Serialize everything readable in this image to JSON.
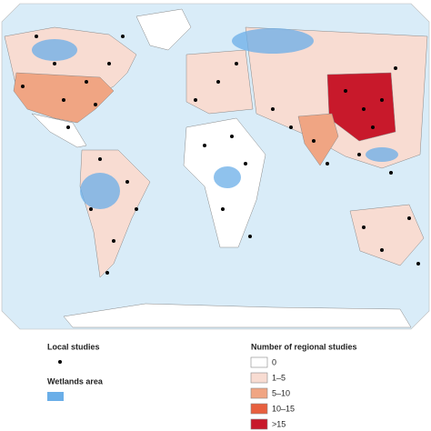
{
  "legend": {
    "local_studies": {
      "title": "Local studies",
      "color": "#000000"
    },
    "wetlands": {
      "title": "Wetlands area",
      "color": "#6aaee8"
    },
    "regional": {
      "title": "Number of regional studies",
      "classes": [
        {
          "label": "0",
          "color": "#ffffff"
        },
        {
          "label": "1–5",
          "color": "#f8dcd2"
        },
        {
          "label": "5–10",
          "color": "#f0a583"
        },
        {
          "label": "10–15",
          "color": "#e8603f"
        },
        {
          "label": ">15",
          "color": "#c8192b"
        }
      ]
    }
  }
}
